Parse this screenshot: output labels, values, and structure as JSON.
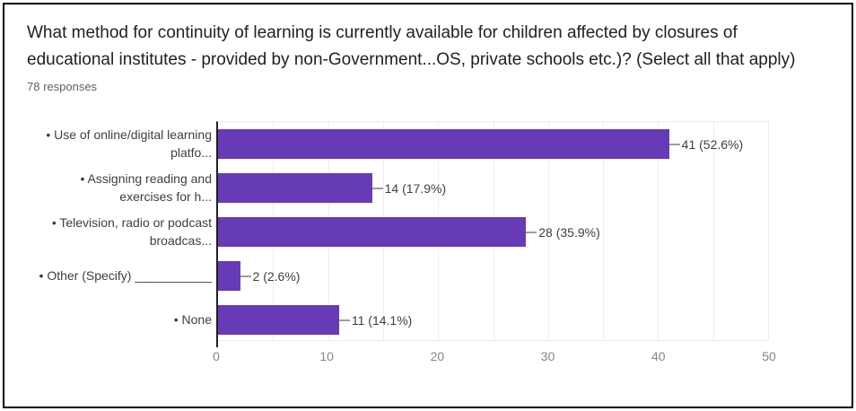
{
  "header": {
    "title_line1": "What method for continuity of learning is currently available for children affected by closures of",
    "title_line2": "educational institutes - provided by non-Government...OS, private schools etc.)? (Select all that apply)",
    "responses_count": "78 responses"
  },
  "chart_data": {
    "type": "bar",
    "orientation": "horizontal",
    "title": "What method for continuity of learning is currently available for children affected by closures of educational institutes - provided by non-Government...OS, private schools etc.)? (Select all that apply)",
    "subtitle": "78 responses",
    "total_responses": 78,
    "categories": [
      "• Use of online/digital learning platfo...",
      "• Assigning reading and exercises for h...",
      "• Television, radio or podcast broadcas...",
      "• Other (Specify) ___________",
      "• None"
    ],
    "category_lines": [
      [
        "• Use of online/digital learning",
        "platfo..."
      ],
      [
        "• Assigning reading and",
        "exercises for h..."
      ],
      [
        "• Television, radio or podcast",
        "broadcas..."
      ],
      [
        "• Other (Specify) ___________"
      ],
      [
        "• None"
      ]
    ],
    "values": [
      41,
      14,
      28,
      2,
      11
    ],
    "percentages": [
      52.6,
      17.9,
      35.9,
      2.6,
      14.1
    ],
    "value_labels": [
      "41 (52.6%)",
      "14 (17.9%)",
      "28 (35.9%)",
      "2 (2.6%)",
      "11 (14.1%)"
    ],
    "xlim": [
      0,
      50
    ],
    "xticks": [
      0,
      10,
      20,
      30,
      40,
      50
    ],
    "gridline_interval": 5,
    "grid": true,
    "legend": "none",
    "bar_color": "#673ab7"
  },
  "colors": {
    "bar": "#673ab7",
    "axis_line": "#212121",
    "gridline": "#eeeeee",
    "tick_text": "#80868b",
    "title_text": "#202124",
    "subtitle_text": "#616161",
    "label_text": "#3c4043",
    "connector": "#9e9e9e"
  }
}
